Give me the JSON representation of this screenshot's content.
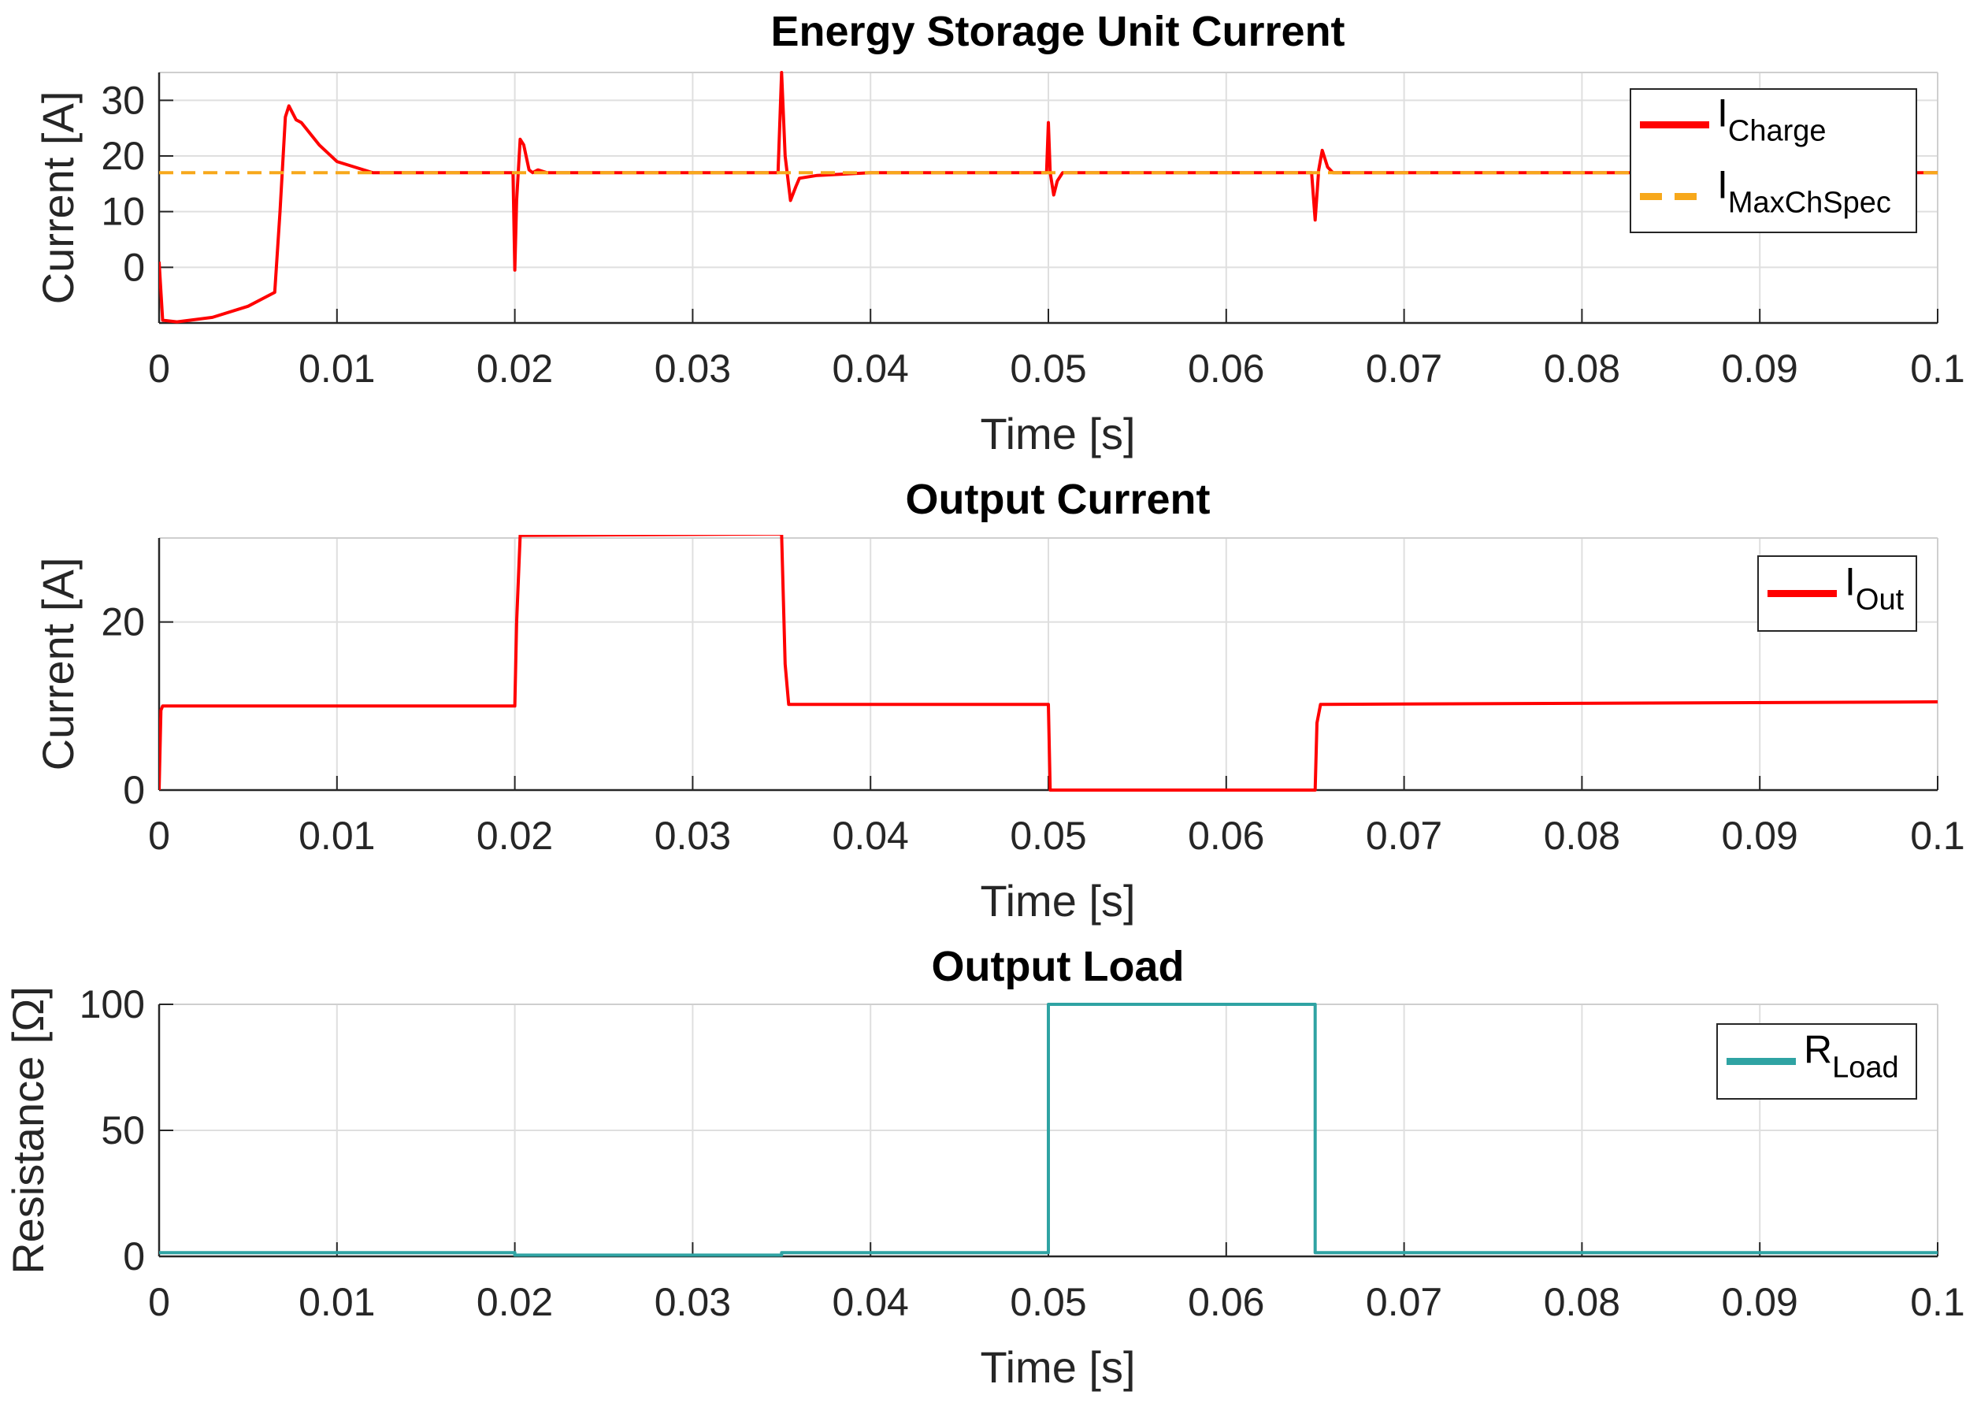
{
  "chart_data": [
    {
      "type": "line",
      "title": "Energy Storage Unit Current",
      "xlabel": "Time [s]",
      "ylabel": "Current [A]",
      "xlim": [
        0,
        0.1
      ],
      "ylim": [
        -10,
        35
      ],
      "xticks": [
        "0",
        "0.01",
        "0.02",
        "0.03",
        "0.04",
        "0.05",
        "0.06",
        "0.07",
        "0.08",
        "0.09",
        "0.1"
      ],
      "yticks": [
        "0",
        "10",
        "20",
        "30"
      ],
      "grid": true,
      "legend_position": "top-right",
      "series": [
        {
          "name": "I_Charge",
          "legend_main": "I",
          "legend_sub": "Charge",
          "color": "#ff0000",
          "style": "solid",
          "x": [
            0,
            0.0002,
            0.001,
            0.003,
            0.005,
            0.0065,
            0.0068,
            0.0071,
            0.0073,
            0.0077,
            0.008,
            0.009,
            0.01,
            0.011,
            0.012,
            0.015,
            0.0199,
            0.02,
            0.0201,
            0.0203,
            0.0205,
            0.0208,
            0.021,
            0.0213,
            0.0218,
            0.023,
            0.03,
            0.0348,
            0.035,
            0.0352,
            0.0355,
            0.0358,
            0.036,
            0.037,
            0.04,
            0.0499,
            0.05,
            0.0501,
            0.0503,
            0.0505,
            0.0508,
            0.052,
            0.06,
            0.0648,
            0.065,
            0.0652,
            0.0654,
            0.0657,
            0.066,
            0.067,
            0.08,
            0.1
          ],
          "y": [
            1,
            -9.5,
            -9.8,
            -9,
            -7,
            -4.5,
            10,
            27,
            29,
            26.5,
            26,
            22,
            19,
            18,
            17,
            17,
            17,
            -0.5,
            12,
            23,
            22,
            17.5,
            17,
            17.5,
            17,
            17,
            17,
            17,
            35,
            20,
            12,
            14.5,
            16,
            16.5,
            17,
            17,
            26,
            17,
            13,
            15.5,
            17,
            17,
            17,
            17,
            8.5,
            17.5,
            21,
            18,
            17,
            17,
            17,
            17
          ]
        },
        {
          "name": "I_MaxChSpec",
          "legend_main": "I",
          "legend_sub": "MaxChSpec",
          "color": "#f7a81b",
          "style": "dashed",
          "x": [
            0,
            0.1
          ],
          "y": [
            17,
            17
          ]
        }
      ]
    },
    {
      "type": "line",
      "title": "Output Current",
      "xlabel": "Time [s]",
      "ylabel": "Current [A]",
      "xlim": [
        0,
        0.1
      ],
      "ylim": [
        0,
        30
      ],
      "xticks": [
        "0",
        "0.01",
        "0.02",
        "0.03",
        "0.04",
        "0.05",
        "0.06",
        "0.07",
        "0.08",
        "0.09",
        "0.1"
      ],
      "yticks": [
        "0",
        "20"
      ],
      "grid": true,
      "legend_position": "top-right",
      "series": [
        {
          "name": "I_Out",
          "legend_main": "I",
          "legend_sub": "Out",
          "color": "#ff0000",
          "style": "solid",
          "x": [
            0,
            0.0001,
            0.0002,
            0.02,
            0.0201,
            0.0203,
            0.035,
            0.0352,
            0.0354,
            0.05,
            0.0501,
            0.065,
            0.0651,
            0.0653,
            0.1
          ],
          "y": [
            0,
            9.5,
            10,
            10,
            20,
            30.3,
            30.5,
            15,
            10.2,
            10.2,
            0,
            0,
            8,
            10.2,
            10.5
          ]
        }
      ]
    },
    {
      "type": "line",
      "title": "Output Load",
      "xlabel": "Time [s]",
      "ylabel": "Resistance [Ω]",
      "xlim": [
        0,
        0.1
      ],
      "ylim": [
        0,
        100
      ],
      "xticks": [
        "0",
        "0.01",
        "0.02",
        "0.03",
        "0.04",
        "0.05",
        "0.06",
        "0.07",
        "0.08",
        "0.09",
        "0.1"
      ],
      "yticks": [
        "0",
        "50",
        "100"
      ],
      "grid": true,
      "legend_position": "top-right",
      "series": [
        {
          "name": "R_Load",
          "legend_main": "R",
          "legend_sub": "Load",
          "color": "#2fa3a3",
          "style": "solid",
          "x": [
            0,
            0.02,
            0.02,
            0.035,
            0.035,
            0.05,
            0.05,
            0.065,
            0.065,
            0.1
          ],
          "y": [
            1.5,
            1.5,
            0.5,
            0.5,
            1.5,
            1.5,
            100,
            100,
            1.5,
            1.5
          ]
        }
      ]
    }
  ]
}
